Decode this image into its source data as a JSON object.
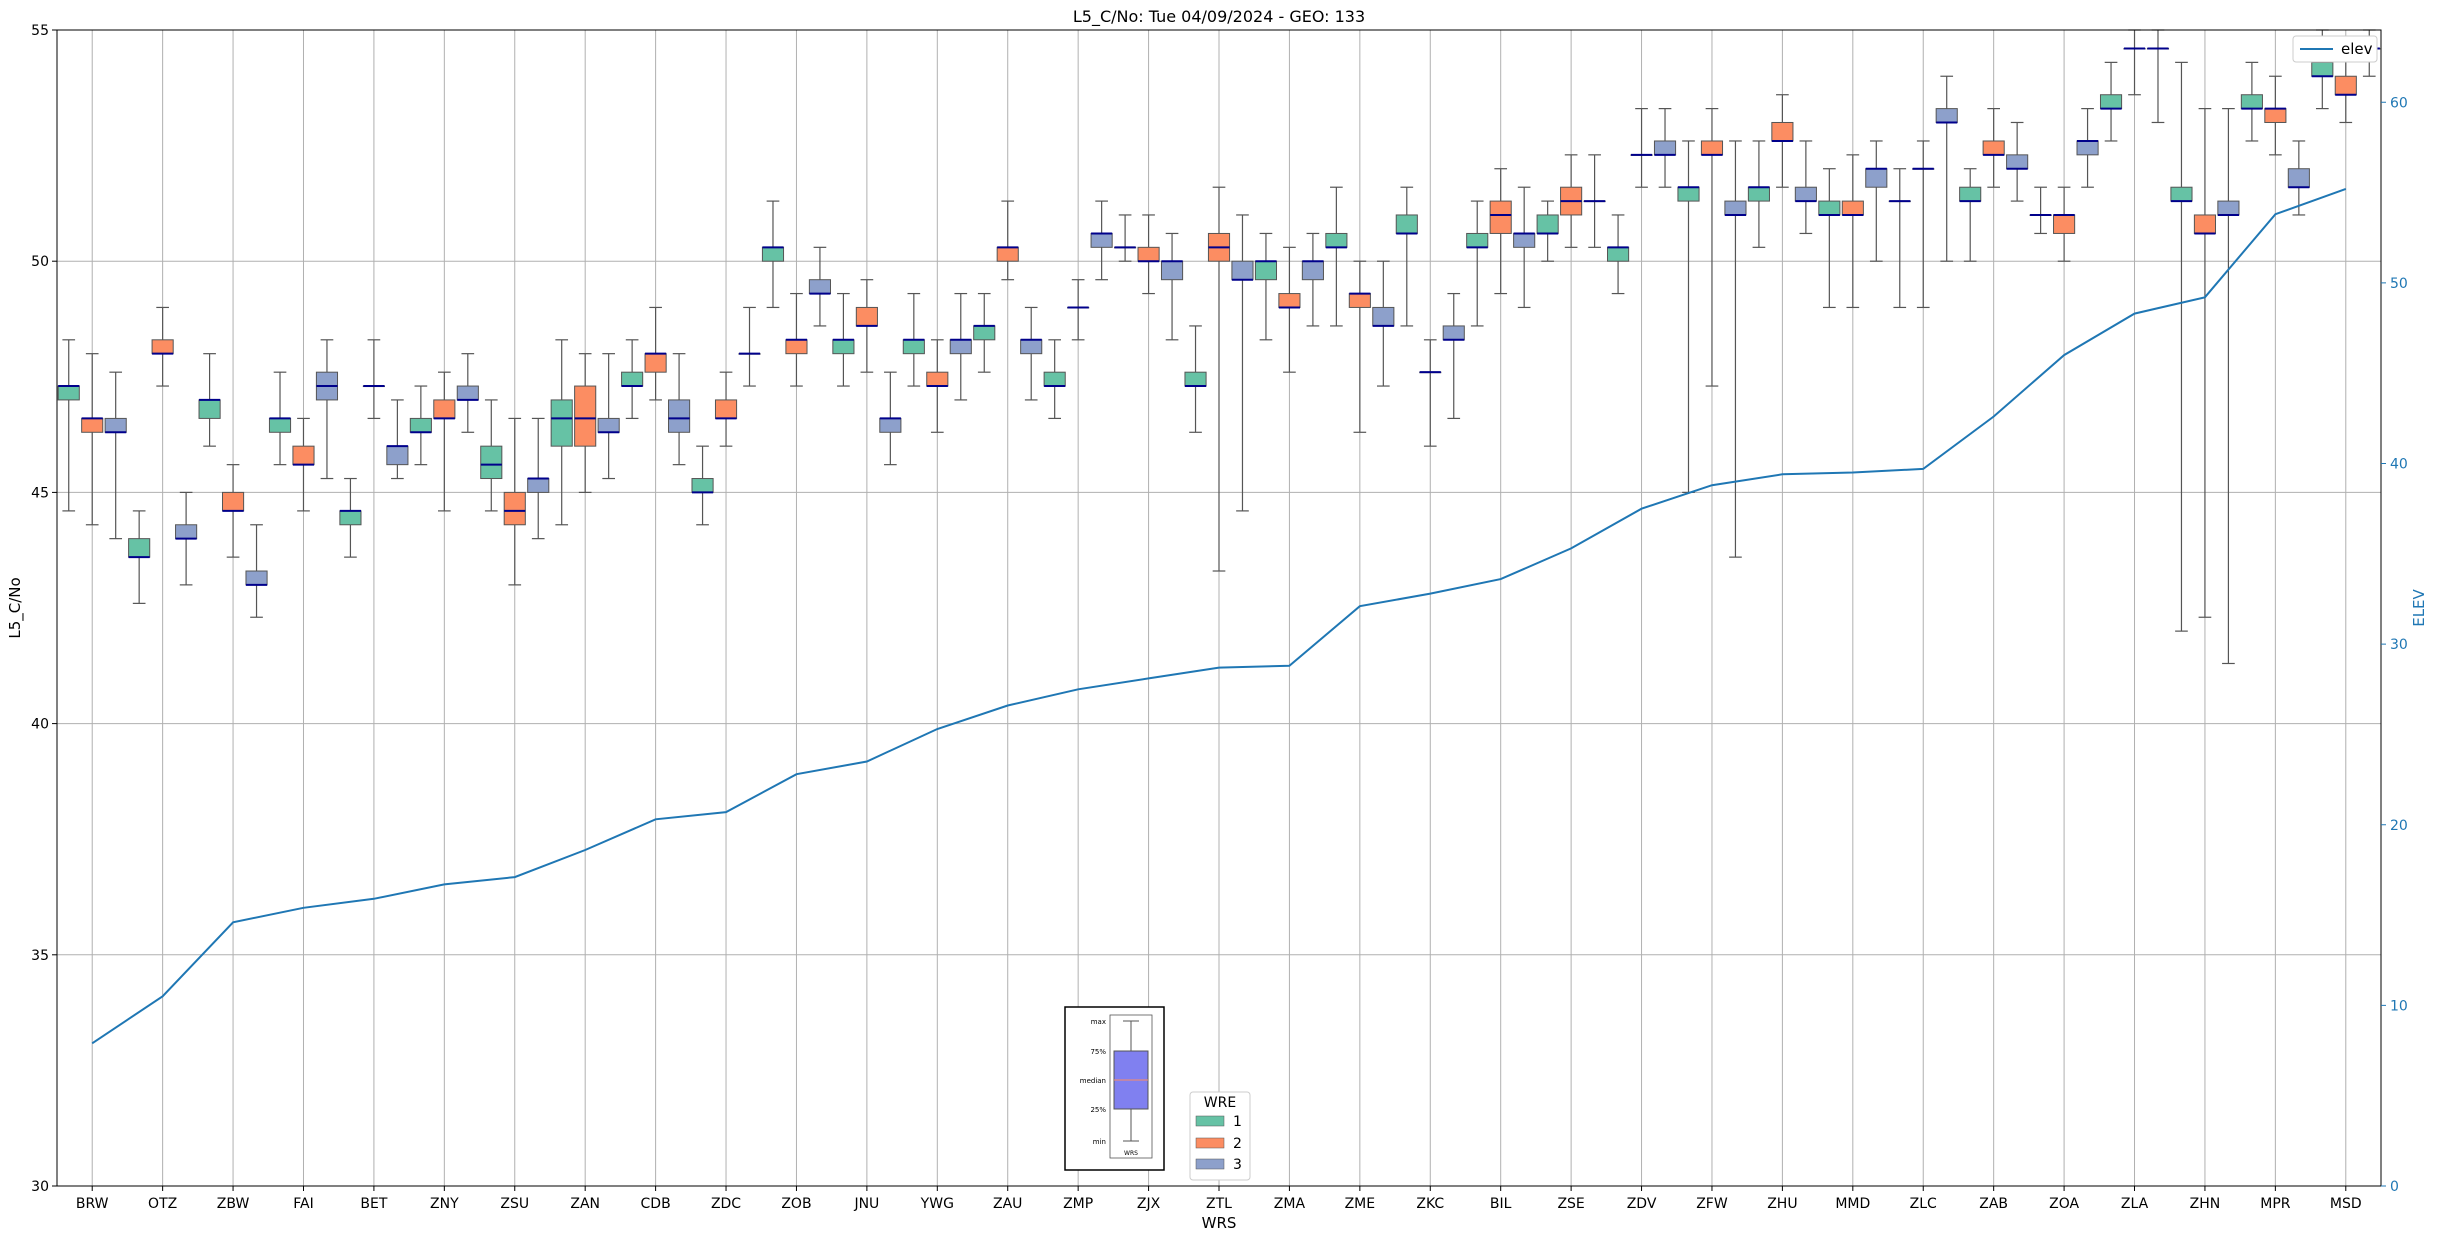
{
  "chart_data": {
    "type": "box",
    "title": "L5_C/No: Tue 04/09/2024 - GEO: 133",
    "xlabel": "WRS",
    "ylabel": "L5_C/No",
    "y2label": "ELEV",
    "ylim": [
      30,
      55
    ],
    "y2lim": [
      0,
      64
    ],
    "yticks": [
      30,
      35,
      40,
      45,
      50,
      55
    ],
    "y2ticks": [
      0,
      10,
      20,
      30,
      40,
      50,
      60
    ],
    "grid": true,
    "categories": [
      "BRW",
      "OTZ",
      "ZBW",
      "FAI",
      "BET",
      "ZNY",
      "ZSU",
      "ZAN",
      "CDB",
      "ZDC",
      "ZOB",
      "JNU",
      "YWG",
      "ZAU",
      "ZMP",
      "ZJX",
      "ZTL",
      "ZMA",
      "ZME",
      "ZKC",
      "BIL",
      "ZSE",
      "ZDV",
      "ZFW",
      "ZHU",
      "MMD",
      "ZLC",
      "ZAB",
      "ZOA",
      "ZLA",
      "ZHN",
      "MPR",
      "MSD"
    ],
    "colors": {
      "1": "#66c2a5",
      "2": "#fc8d62",
      "3": "#8da0cb",
      "median": "#00008b",
      "elev_line": "#1f77b4",
      "whisker": "#555555",
      "grid": "#b0b0b0"
    },
    "legend_wre": {
      "title": "WRE",
      "entries": [
        "1",
        "2",
        "3"
      ],
      "placement": "bottom-center"
    },
    "legend_elev": {
      "label": "elev",
      "placement": "top-right"
    },
    "key_box": {
      "labels": [
        "max",
        "75%",
        "median",
        "25%",
        "min"
      ],
      "xlabel": "WRS",
      "fill": "#8080f0"
    },
    "series": [
      {
        "name": "1",
        "values": [
          {
            "min": 44.6,
            "q1": 47.0,
            "median": 47.3,
            "q3": 47.3,
            "max": 48.3
          },
          {
            "min": 42.6,
            "q1": 43.6,
            "median": 43.6,
            "q3": 44.0,
            "max": 44.6
          },
          {
            "min": 46.0,
            "q1": 46.6,
            "median": 47.0,
            "q3": 47.0,
            "max": 48.0
          },
          {
            "min": 45.6,
            "q1": 46.3,
            "median": 46.6,
            "q3": 46.6,
            "max": 47.6
          },
          {
            "min": 43.6,
            "q1": 44.3,
            "median": 44.6,
            "q3": 44.6,
            "max": 45.3
          },
          {
            "min": 45.6,
            "q1": 46.3,
            "median": 46.3,
            "q3": 46.6,
            "max": 47.3
          },
          {
            "min": 44.6,
            "q1": 45.3,
            "median": 45.6,
            "q3": 46.0,
            "max": 47.0
          },
          {
            "min": 44.3,
            "q1": 46.0,
            "median": 46.6,
            "q3": 47.0,
            "max": 48.3
          },
          {
            "min": 46.6,
            "q1": 47.3,
            "median": 47.3,
            "q3": 47.6,
            "max": 48.3
          },
          {
            "min": 44.3,
            "q1": 45.0,
            "median": 45.0,
            "q3": 45.3,
            "max": 46.0
          },
          {
            "min": 49.0,
            "q1": 50.0,
            "median": 50.3,
            "q3": 50.3,
            "max": 51.3
          },
          {
            "min": 47.3,
            "q1": 48.0,
            "median": 48.3,
            "q3": 48.3,
            "max": 49.3
          },
          {
            "min": 47.3,
            "q1": 48.0,
            "median": 48.3,
            "q3": 48.3,
            "max": 49.3
          },
          {
            "min": 47.6,
            "q1": 48.3,
            "median": 48.6,
            "q3": 48.6,
            "max": 49.3
          },
          {
            "min": 46.6,
            "q1": 47.3,
            "median": 47.3,
            "q3": 47.6,
            "max": 48.3
          },
          {
            "min": 50.0,
            "q1": 50.3,
            "median": 50.3,
            "q3": 50.3,
            "max": 51.0
          },
          {
            "min": 46.3,
            "q1": 47.3,
            "median": 47.3,
            "q3": 47.6,
            "max": 48.6
          },
          {
            "min": 48.3,
            "q1": 49.6,
            "median": 50.0,
            "q3": 50.0,
            "max": 50.6
          },
          {
            "min": 48.6,
            "q1": 50.3,
            "median": 50.3,
            "q3": 50.6,
            "max": 51.6
          },
          {
            "min": 48.6,
            "q1": 50.6,
            "median": 50.6,
            "q3": 51.0,
            "max": 51.6
          },
          {
            "min": 48.6,
            "q1": 50.3,
            "median": 50.3,
            "q3": 50.6,
            "max": 51.3
          },
          {
            "min": 50.0,
            "q1": 50.6,
            "median": 50.6,
            "q3": 51.0,
            "max": 51.3
          },
          {
            "min": 49.3,
            "q1": 50.0,
            "median": 50.3,
            "q3": 50.3,
            "max": 51.0
          },
          {
            "min": 45.0,
            "q1": 51.3,
            "median": 51.6,
            "q3": 51.6,
            "max": 52.6
          },
          {
            "min": 50.3,
            "q1": 51.3,
            "median": 51.6,
            "q3": 51.6,
            "max": 52.6
          },
          {
            "min": 49.0,
            "q1": 51.0,
            "median": 51.0,
            "q3": 51.3,
            "max": 52.0
          },
          {
            "min": 49.0,
            "q1": 51.3,
            "median": 51.3,
            "q3": 51.3,
            "max": 52.0
          },
          {
            "min": 50.0,
            "q1": 51.3,
            "median": 51.3,
            "q3": 51.6,
            "max": 52.0
          },
          {
            "min": 50.6,
            "q1": 51.0,
            "median": 51.0,
            "q3": 51.0,
            "max": 51.6
          },
          {
            "min": 52.6,
            "q1": 53.3,
            "median": 53.3,
            "q3": 53.6,
            "max": 54.3
          },
          {
            "min": 42.0,
            "q1": 51.3,
            "median": 51.3,
            "q3": 51.6,
            "max": 54.3
          },
          {
            "min": 52.6,
            "q1": 53.3,
            "median": 53.3,
            "q3": 53.6,
            "max": 54.3
          },
          {
            "min": 53.3,
            "q1": 54.0,
            "median": 54.0,
            "q3": 54.3,
            "max": 55.0
          }
        ]
      },
      {
        "name": "2",
        "values": [
          {
            "min": 44.3,
            "q1": 46.3,
            "median": 46.6,
            "q3": 46.6,
            "max": 48.0
          },
          {
            "min": 47.3,
            "q1": 48.0,
            "median": 48.0,
            "q3": 48.3,
            "max": 49.0
          },
          {
            "min": 43.6,
            "q1": 44.6,
            "median": 44.6,
            "q3": 45.0,
            "max": 45.6
          },
          {
            "min": 44.6,
            "q1": 45.6,
            "median": 45.6,
            "q3": 46.0,
            "max": 46.6
          },
          {
            "min": 46.6,
            "q1": 47.3,
            "median": 47.3,
            "q3": 47.3,
            "max": 48.3
          },
          {
            "min": 44.6,
            "q1": 46.6,
            "median": 46.6,
            "q3": 47.0,
            "max": 47.6
          },
          {
            "min": 43.0,
            "q1": 44.3,
            "median": 44.6,
            "q3": 45.0,
            "max": 46.6
          },
          {
            "min": 45.0,
            "q1": 46.0,
            "median": 46.6,
            "q3": 47.3,
            "max": 48.0
          },
          {
            "min": 47.0,
            "q1": 47.6,
            "median": 48.0,
            "q3": 48.0,
            "max": 49.0
          },
          {
            "min": 46.0,
            "q1": 46.6,
            "median": 46.6,
            "q3": 47.0,
            "max": 47.6
          },
          {
            "min": 47.3,
            "q1": 48.0,
            "median": 48.3,
            "q3": 48.3,
            "max": 49.3
          },
          {
            "min": 47.6,
            "q1": 48.6,
            "median": 48.6,
            "q3": 49.0,
            "max": 49.6
          },
          {
            "min": 46.3,
            "q1": 47.3,
            "median": 47.3,
            "q3": 47.6,
            "max": 48.3
          },
          {
            "min": 49.6,
            "q1": 50.0,
            "median": 50.3,
            "q3": 50.3,
            "max": 51.3
          },
          {
            "min": 48.3,
            "q1": 49.0,
            "median": 49.0,
            "q3": 49.0,
            "max": 49.6
          },
          {
            "min": 49.3,
            "q1": 50.0,
            "median": 50.0,
            "q3": 50.3,
            "max": 51.0
          },
          {
            "min": 43.3,
            "q1": 50.0,
            "median": 50.3,
            "q3": 50.6,
            "max": 51.6
          },
          {
            "min": 47.6,
            "q1": 49.0,
            "median": 49.0,
            "q3": 49.3,
            "max": 50.3
          },
          {
            "min": 46.3,
            "q1": 49.0,
            "median": 49.3,
            "q3": 49.3,
            "max": 50.0
          },
          {
            "min": 46.0,
            "q1": 47.6,
            "median": 47.6,
            "q3": 47.6,
            "max": 48.3
          },
          {
            "min": 49.3,
            "q1": 50.6,
            "median": 51.0,
            "q3": 51.3,
            "max": 52.0
          },
          {
            "min": 50.3,
            "q1": 51.0,
            "median": 51.3,
            "q3": 51.6,
            "max": 52.3
          },
          {
            "min": 51.6,
            "q1": 52.3,
            "median": 52.3,
            "q3": 52.3,
            "max": 53.3
          },
          {
            "min": 47.3,
            "q1": 52.3,
            "median": 52.3,
            "q3": 52.6,
            "max": 53.3
          },
          {
            "min": 51.6,
            "q1": 52.6,
            "median": 52.6,
            "q3": 53.0,
            "max": 53.6
          },
          {
            "min": 49.0,
            "q1": 51.0,
            "median": 51.0,
            "q3": 51.3,
            "max": 52.3
          },
          {
            "min": 49.0,
            "q1": 52.0,
            "median": 52.0,
            "q3": 52.0,
            "max": 52.6
          },
          {
            "min": 51.6,
            "q1": 52.3,
            "median": 52.3,
            "q3": 52.6,
            "max": 53.3
          },
          {
            "min": 50.0,
            "q1": 50.6,
            "median": 51.0,
            "q3": 51.0,
            "max": 51.6
          },
          {
            "min": 53.6,
            "q1": 54.6,
            "median": 54.6,
            "q3": 54.6,
            "max": 55.0
          },
          {
            "min": 42.3,
            "q1": 50.6,
            "median": 50.6,
            "q3": 51.0,
            "max": 53.3
          },
          {
            "min": 52.3,
            "q1": 53.0,
            "median": 53.3,
            "q3": 53.3,
            "max": 54.0
          },
          {
            "min": 53.0,
            "q1": 53.6,
            "median": 53.6,
            "q3": 54.0,
            "max": 54.6
          }
        ]
      },
      {
        "name": "3",
        "values": [
          {
            "min": 44.0,
            "q1": 46.3,
            "median": 46.3,
            "q3": 46.6,
            "max": 47.6
          },
          {
            "min": 43.0,
            "q1": 44.0,
            "median": 44.0,
            "q3": 44.3,
            "max": 45.0
          },
          {
            "min": 42.3,
            "q1": 43.0,
            "median": 43.0,
            "q3": 43.3,
            "max": 44.3
          },
          {
            "min": 45.3,
            "q1": 47.0,
            "median": 47.3,
            "q3": 47.6,
            "max": 48.3
          },
          {
            "min": 45.3,
            "q1": 45.6,
            "median": 46.0,
            "q3": 46.0,
            "max": 47.0
          },
          {
            "min": 46.3,
            "q1": 47.0,
            "median": 47.0,
            "q3": 47.3,
            "max": 48.0
          },
          {
            "min": 44.0,
            "q1": 45.0,
            "median": 45.3,
            "q3": 45.3,
            "max": 46.6
          },
          {
            "min": 45.3,
            "q1": 46.3,
            "median": 46.3,
            "q3": 46.6,
            "max": 48.0
          },
          {
            "min": 45.6,
            "q1": 46.3,
            "median": 46.6,
            "q3": 47.0,
            "max": 48.0
          },
          {
            "min": 47.3,
            "q1": 48.0,
            "median": 48.0,
            "q3": 48.0,
            "max": 49.0
          },
          {
            "min": 48.6,
            "q1": 49.3,
            "median": 49.3,
            "q3": 49.6,
            "max": 50.3
          },
          {
            "min": 45.6,
            "q1": 46.3,
            "median": 46.6,
            "q3": 46.6,
            "max": 47.6
          },
          {
            "min": 47.0,
            "q1": 48.0,
            "median": 48.3,
            "q3": 48.3,
            "max": 49.3
          },
          {
            "min": 47.0,
            "q1": 48.0,
            "median": 48.3,
            "q3": 48.3,
            "max": 49.0
          },
          {
            "min": 49.6,
            "q1": 50.3,
            "median": 50.6,
            "q3": 50.6,
            "max": 51.3
          },
          {
            "min": 48.3,
            "q1": 49.6,
            "median": 50.0,
            "q3": 50.0,
            "max": 50.6
          },
          {
            "min": 44.6,
            "q1": 49.6,
            "median": 49.6,
            "q3": 50.0,
            "max": 51.0
          },
          {
            "min": 48.6,
            "q1": 49.6,
            "median": 50.0,
            "q3": 50.0,
            "max": 50.6
          },
          {
            "min": 47.3,
            "q1": 48.6,
            "median": 48.6,
            "q3": 49.0,
            "max": 50.0
          },
          {
            "min": 46.6,
            "q1": 48.3,
            "median": 48.3,
            "q3": 48.6,
            "max": 49.3
          },
          {
            "min": 49.0,
            "q1": 50.3,
            "median": 50.6,
            "q3": 50.6,
            "max": 51.6
          },
          {
            "min": 50.3,
            "q1": 51.3,
            "median": 51.3,
            "q3": 51.3,
            "max": 52.3
          },
          {
            "min": 51.6,
            "q1": 52.3,
            "median": 52.3,
            "q3": 52.6,
            "max": 53.3
          },
          {
            "min": 43.6,
            "q1": 51.0,
            "median": 51.0,
            "q3": 51.3,
            "max": 52.6
          },
          {
            "min": 50.6,
            "q1": 51.3,
            "median": 51.3,
            "q3": 51.6,
            "max": 52.6
          },
          {
            "min": 50.0,
            "q1": 51.6,
            "median": 52.0,
            "q3": 52.0,
            "max": 52.6
          },
          {
            "min": 50.0,
            "q1": 53.0,
            "median": 53.0,
            "q3": 53.3,
            "max": 54.0
          },
          {
            "min": 51.3,
            "q1": 52.0,
            "median": 52.0,
            "q3": 52.3,
            "max": 53.0
          },
          {
            "min": 51.6,
            "q1": 52.3,
            "median": 52.6,
            "q3": 52.6,
            "max": 53.3
          },
          {
            "min": 53.0,
            "q1": 54.6,
            "median": 54.6,
            "q3": 54.6,
            "max": 55.0
          },
          {
            "min": 41.3,
            "q1": 51.0,
            "median": 51.0,
            "q3": 51.3,
            "max": 53.3
          },
          {
            "min": 51.0,
            "q1": 51.6,
            "median": 51.6,
            "q3": 52.0,
            "max": 52.6
          },
          {
            "min": 54.0,
            "q1": 54.6,
            "median": 54.6,
            "q3": 54.6,
            "max": 55.0
          }
        ]
      }
    ],
    "elev": [
      7.9,
      10.5,
      14.6,
      15.4,
      15.9,
      16.7,
      17.1,
      18.6,
      20.3,
      20.7,
      22.8,
      23.5,
      25.3,
      26.6,
      27.5,
      28.1,
      28.7,
      28.8,
      32.1,
      32.8,
      33.6,
      35.3,
      37.5,
      38.8,
      39.4,
      39.5,
      39.7,
      42.6,
      46.0,
      48.3,
      49.2,
      53.8,
      55.2
    ]
  }
}
